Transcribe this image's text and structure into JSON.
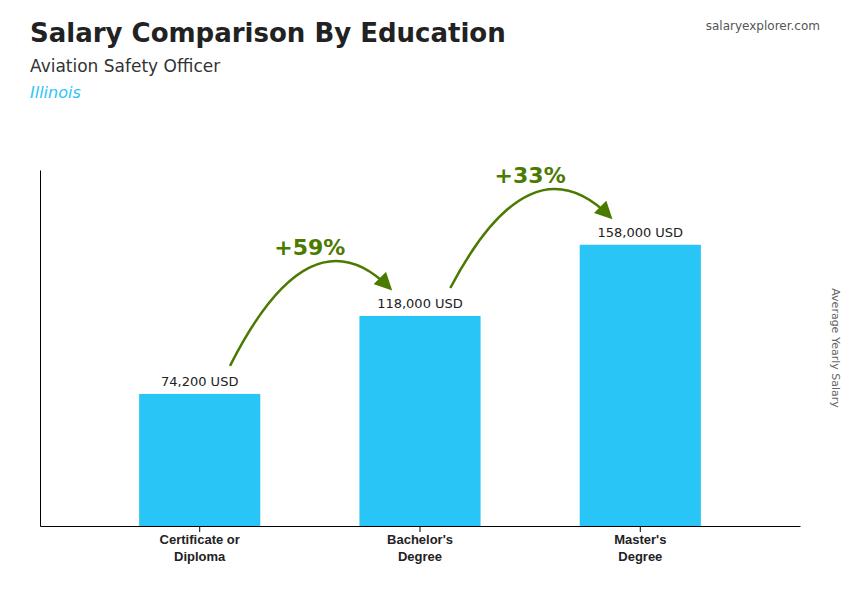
{
  "chart_data": {
    "type": "bar",
    "title": "Salary Comparison By Education",
    "subtitle": "Aviation Safety Officer",
    "y_label": "Average Yearly Salary",
    "annotations": [
      "Illinois",
      "+59%",
      "+33%",
      "salaryexplorer.com"
    ],
    "categories": [
      "Certificate or\nDiploma",
      "Bachelor's\nDegree",
      "Master's\nDegree"
    ],
    "values": [
      74200,
      118000,
      158000
    ],
    "value_labels": [
      "74,200 USD",
      "118,000 USD",
      "158,000 USD"
    ],
    "data_labels": true,
    "color": "#29c5f6",
    "ylim": [
      0,
      200000
    ],
    "tick_labels": "x",
    "grid": false
  }
}
